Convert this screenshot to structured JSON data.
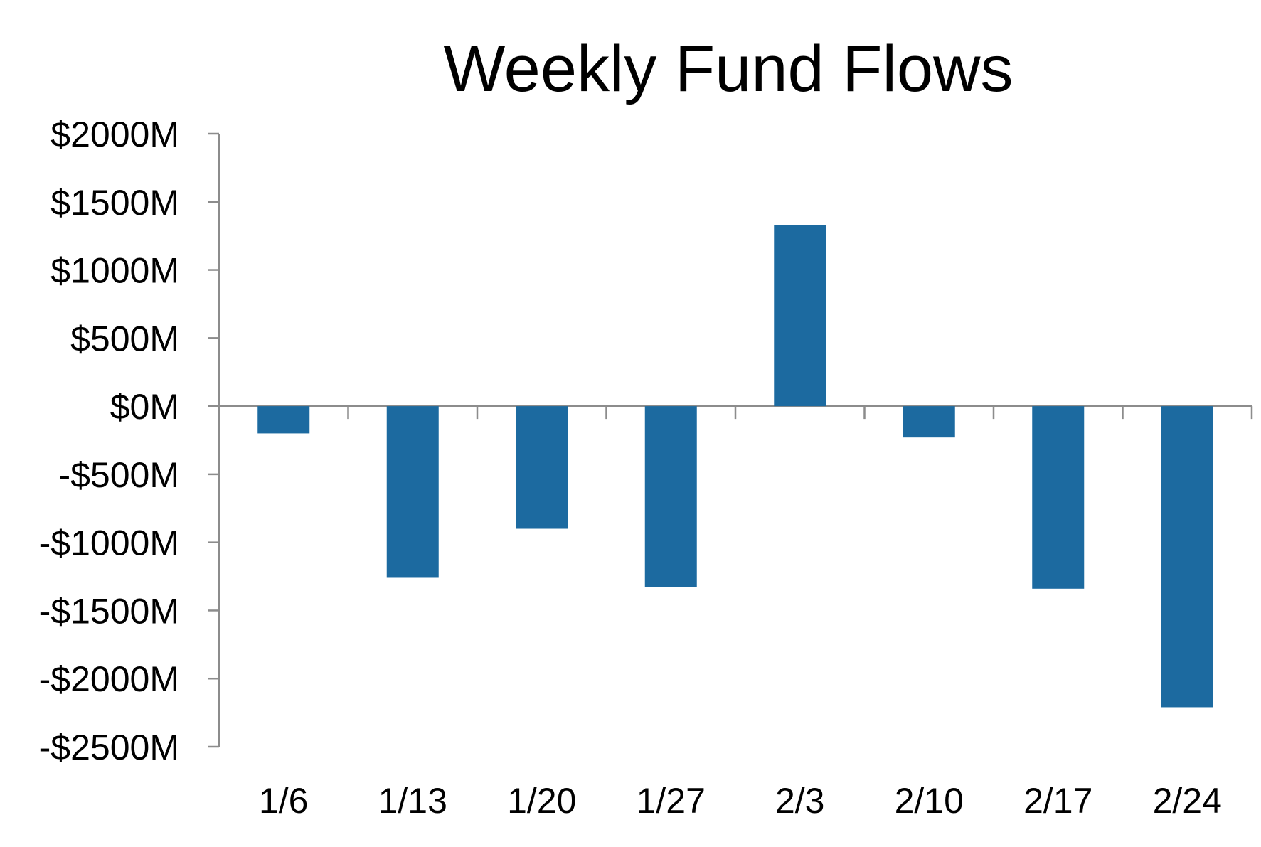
{
  "chart_data": {
    "type": "bar",
    "title": "Weekly Fund Flows",
    "xlabel": "",
    "ylabel": "",
    "categories": [
      "1/6",
      "1/13",
      "1/20",
      "1/27",
      "2/3",
      "2/10",
      "2/17",
      "2/24"
    ],
    "series": [
      {
        "values": [
          -200,
          -1260,
          -900,
          -1330,
          1330,
          -230,
          -1340,
          -2210
        ],
        "color": "#1c6aa0"
      }
    ],
    "ylim": [
      -2500,
      2000
    ],
    "yticks": [
      2000,
      1500,
      1000,
      500,
      0,
      -500,
      -1000,
      -1500,
      -2000,
      -2500
    ],
    "ytick_labels": [
      "$2000M",
      "$1500M",
      "$1000M",
      "$500M",
      "$0M",
      "-$500M",
      "-$1000M",
      "-$1500M",
      "-$2000M",
      "-$2500M"
    ],
    "grid": false,
    "legend": "none"
  }
}
